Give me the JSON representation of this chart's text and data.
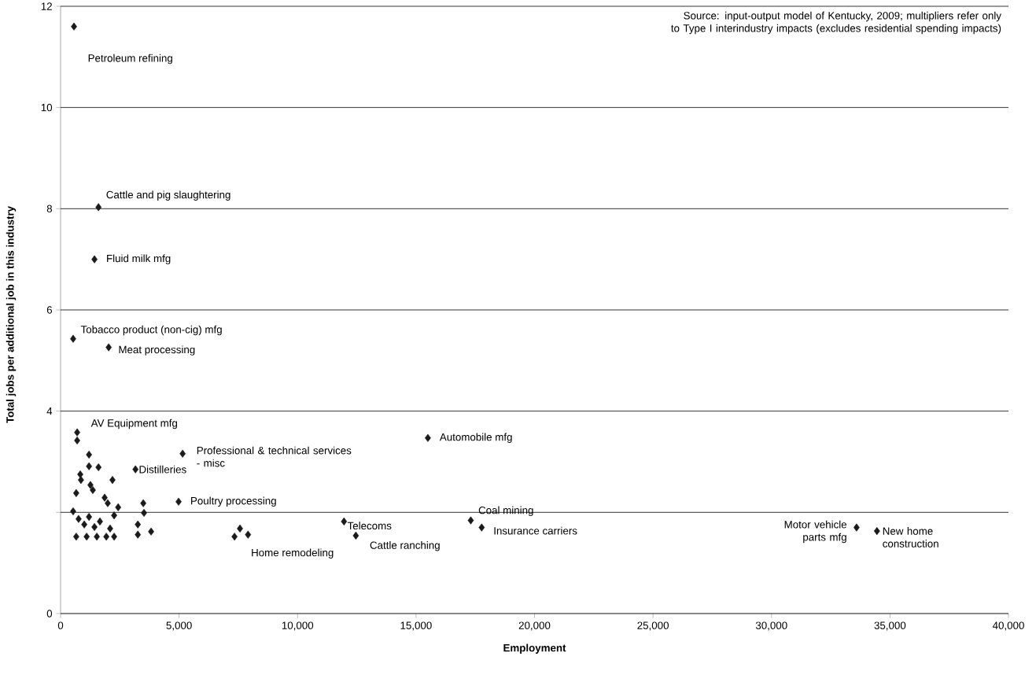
{
  "chart_data": {
    "type": "scatter",
    "xlabel": "Employment",
    "ylabel": "Total jobs per additional job in this industry",
    "xlim": [
      0,
      40000
    ],
    "ylim": [
      0,
      12
    ],
    "xticks": [
      0,
      {
        "value": 5000,
        "label": "5,000"
      },
      {
        "value": 10000,
        "label": "10,000"
      },
      {
        "value": 15000,
        "label": "15,000"
      },
      {
        "value": 20000,
        "label": "20,000"
      },
      {
        "value": 25000,
        "label": "25,000"
      },
      {
        "value": 30000,
        "label": "30,000"
      },
      {
        "value": 35000,
        "label": "35,000"
      },
      {
        "value": 40000,
        "label": "40,000"
      }
    ],
    "yticks": [
      0,
      {
        "value": 2,
        "label": null
      },
      4,
      6,
      8,
      10,
      12
    ],
    "grid": "y",
    "marker": "diamond",
    "series": [
      {
        "color": "#1a1a1a",
        "x": [
          565,
          1600,
          1430,
          530,
          2030,
          700,
          700,
          15500,
          5150,
          3160,
          4980,
          11960,
          12460,
          17310,
          17770,
          33590,
          34450,
          7340,
          7570,
          7910,
          1200,
          1200,
          1600,
          830,
          860,
          2190,
          1260,
          1360,
          660,
          1860,
          1990,
          3490,
          3520,
          2430,
          2260,
          3260,
          3260,
          3820,
          660,
          1100,
          1530,
          1930,
          2260,
          2090,
          530,
          760,
          1000,
          1200,
          1430,
          1660
        ],
        "values": [
          11.6,
          8.03,
          7.0,
          5.43,
          5.26,
          3.58,
          3.42,
          3.47,
          3.16,
          2.85,
          2.21,
          1.82,
          1.54,
          1.84,
          1.7,
          1.7,
          1.63,
          1.52,
          1.68,
          1.56,
          3.14,
          2.91,
          2.89,
          2.75,
          2.64,
          2.64,
          2.54,
          2.44,
          2.38,
          2.29,
          2.18,
          2.18,
          1.99,
          2.1,
          1.94,
          1.76,
          1.56,
          1.62,
          1.52,
          1.52,
          1.52,
          1.52,
          1.52,
          1.68,
          2.02,
          1.87,
          1.76,
          1.91,
          1.71,
          1.82
        ]
      }
    ],
    "annotations": [
      "Source: input-output model of Kentucky, 2009; multipliers refer only to Type I interindustry impacts (excludes residential spending impacts)",
      {
        "text": "Petroleum refining",
        "x": 565,
        "y": 11.6
      },
      {
        "text": "Cattle and pig slaughtering",
        "x": 1600,
        "y": 8.03
      },
      {
        "text": "Fluid milk mfg",
        "x": 1430,
        "y": 7.0
      },
      {
        "text": "Tobacco product (non-cig) mfg",
        "x": 530,
        "y": 5.43
      },
      {
        "text": "Meat processing",
        "x": 2030,
        "y": 5.26
      },
      {
        "text": "AV Equipment mfg",
        "x": 700,
        "y": 3.58
      },
      {
        "text": "Automobile mfg",
        "x": 15500,
        "y": 3.47
      },
      {
        "text": "Professional & technical services - misc",
        "x": 5150,
        "y": 3.16
      },
      {
        "text": "Distilleries",
        "x": 3160,
        "y": 2.85
      },
      {
        "text": "Poultry processing",
        "x": 4980,
        "y": 2.21
      },
      {
        "text": "Telecoms",
        "x": 11960,
        "y": 1.82
      },
      {
        "text": "Cattle ranching",
        "x": 12460,
        "y": 1.54
      },
      {
        "text": "Home remodeling",
        "x": 7570,
        "y": 1.68
      },
      {
        "text": "Coal mining",
        "x": 17310,
        "y": 1.84
      },
      {
        "text": "Insurance carriers",
        "x": 17770,
        "y": 1.7
      },
      {
        "text": "Motor vehicle parts mfg",
        "x": 33590,
        "y": 1.7
      },
      {
        "text": "New home construction",
        "x": 34450,
        "y": 1.63
      }
    ]
  }
}
